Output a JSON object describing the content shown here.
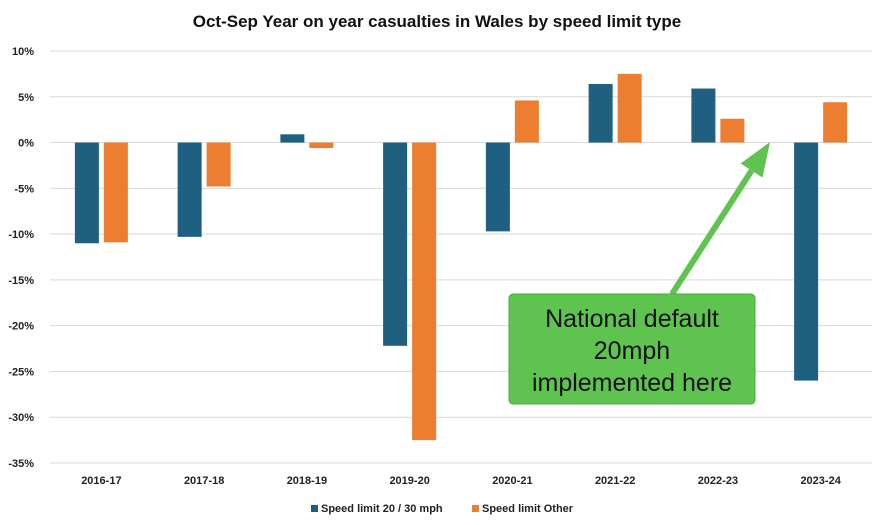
{
  "chart_data": {
    "type": "bar",
    "title": "Oct-Sep Year on year casualties in Wales by speed limit type",
    "xlabel": "",
    "ylabel": "",
    "ylim": [
      -35,
      10
    ],
    "yticks": [
      10,
      5,
      0,
      -5,
      -10,
      -15,
      -20,
      -25,
      -30,
      -35
    ],
    "ytick_labels": [
      "10%",
      "5%",
      "0%",
      "-5%",
      "-10%",
      "-15%",
      "-20%",
      "-25%",
      "-30%",
      "-35%"
    ],
    "grid": true,
    "legend_position": "bottom",
    "categories": [
      "2016-17",
      "2017-18",
      "2018-19",
      "2019-20",
      "2020-21",
      "2021-22",
      "2022-23",
      "2023-24"
    ],
    "series": [
      {
        "name": "Speed limit 20 / 30 mph",
        "color": "#1f5f7f",
        "values": [
          -11.0,
          -10.3,
          0.9,
          -22.2,
          -9.7,
          6.4,
          5.9,
          -26.0
        ]
      },
      {
        "name": "Speed limit Other",
        "color": "#ed7d31",
        "values": [
          -10.9,
          -4.8,
          -0.6,
          -32.5,
          4.6,
          7.5,
          2.6,
          4.4
        ]
      }
    ],
    "annotation": {
      "lines": [
        "National default",
        "20mph",
        "implemented here"
      ],
      "box_color": "#5fc44f",
      "arrow_color": "#5fc44f",
      "points_to": "between 2022-23 and 2023-24 at 0%"
    }
  }
}
